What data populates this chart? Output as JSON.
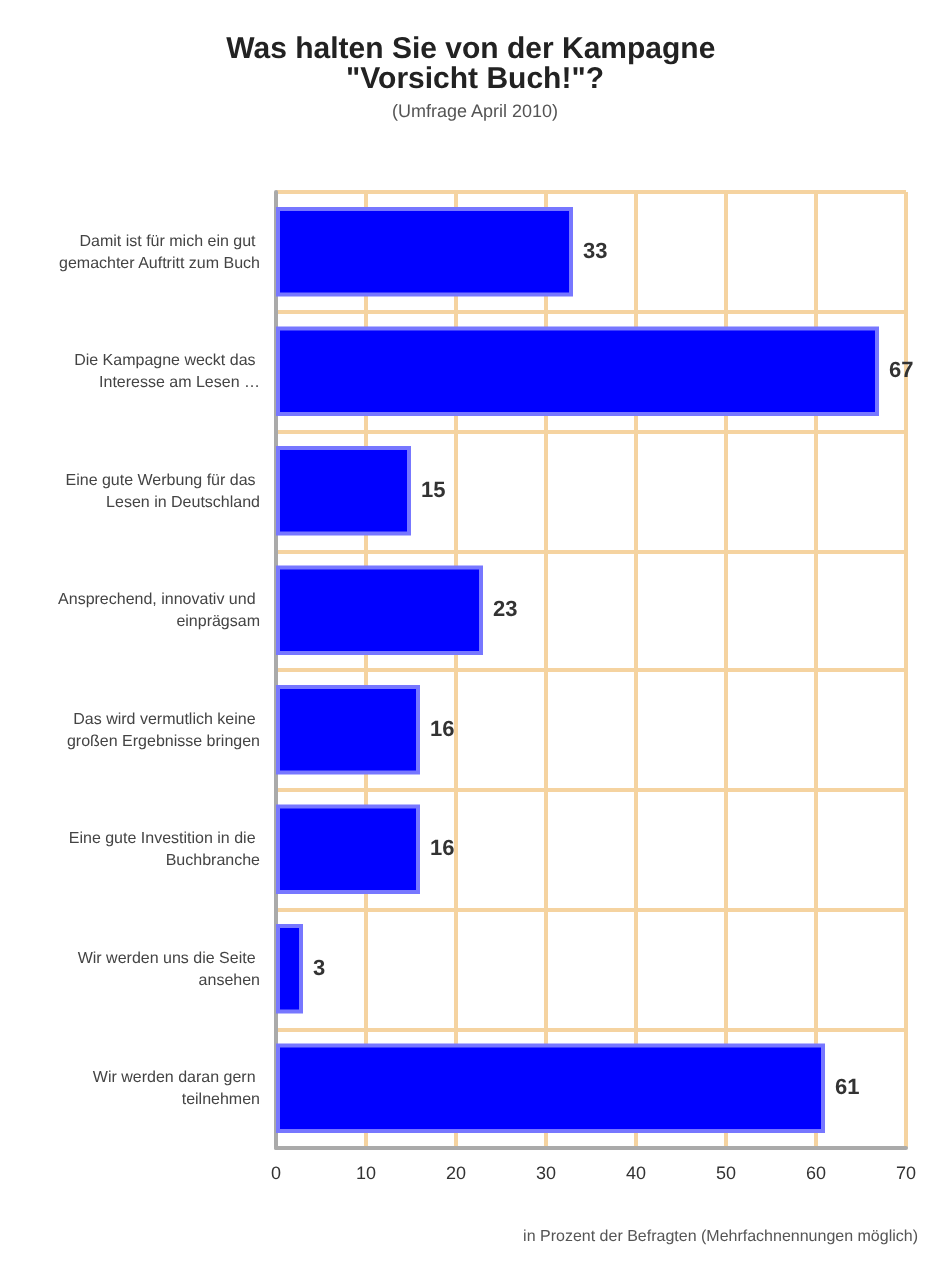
{
  "chart_data": {
    "type": "bar",
    "orientation": "horizontal",
    "title": "Was halten Sie von der Kampagne \"Vorsicht Buch!\"?",
    "subtitle": "(Umfrage April 2010)",
    "categories": [
      "Damit ist für mich ein gut gemachter Auftritt zum Buch",
      "Die Kampagne weckt das Interesse am Lesen …",
      "Eine gute Werbung für das Lesen in Deutschland",
      "Ansprechend, innovativ und einprägsam",
      "Das wird vermutlich keine großen Ergebnisse bringen",
      "Eine gute Investition in die Buchbranche",
      "Wir werden uns die Seite ansehen",
      "Wir werden daran gern teilnehmen"
    ],
    "values": [
      33,
      67,
      15,
      23,
      16,
      16,
      3,
      61
    ],
    "color": "#0000ff",
    "data_labels": true,
    "xlim": [
      0,
      70
    ],
    "xticks": [
      0,
      10,
      20,
      30,
      40,
      50,
      60,
      70
    ],
    "grid": true,
    "annotations": [
      "in Prozent der Befragten (Mehrfachnennungen möglich)"
    ]
  }
}
